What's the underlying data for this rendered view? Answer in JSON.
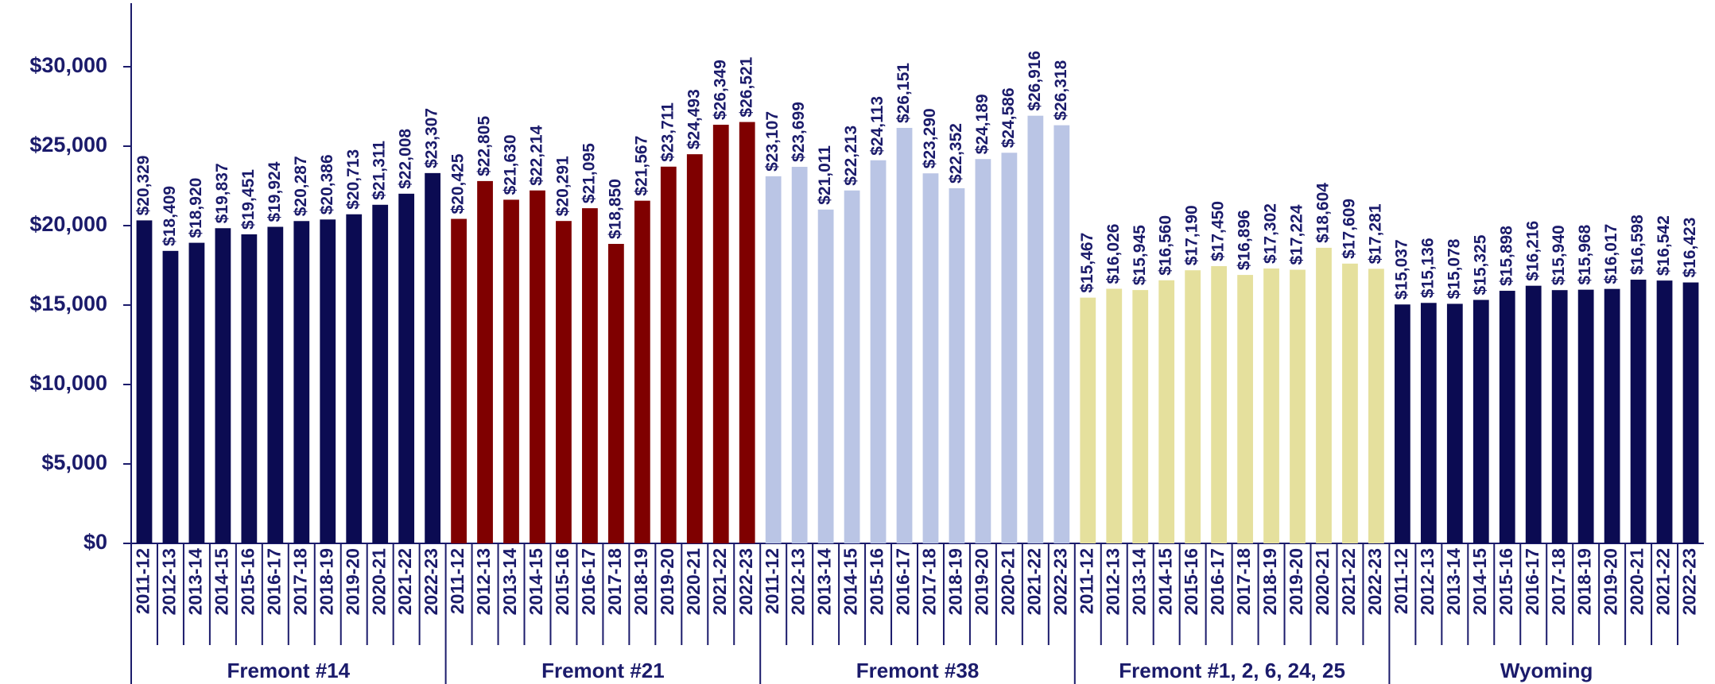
{
  "chart_data": {
    "type": "bar",
    "categories": [
      "2011-12",
      "2012-13",
      "2013-14",
      "2014-15",
      "2015-16",
      "2016-17",
      "2017-18",
      "2018-19",
      "2019-20",
      "2020-21",
      "2021-22",
      "2022-23"
    ],
    "series": [
      {
        "name": "Fremont #14",
        "color": "#0b0b52",
        "values": [
          20329,
          18409,
          18920,
          19837,
          19451,
          19924,
          20287,
          20386,
          20713,
          21311,
          22008,
          23307
        ],
        "value_labels": [
          "$20,329",
          "$18,409",
          "$18,920",
          "$19,837",
          "$19,451",
          "$19,924",
          "$20,287",
          "$20,386",
          "$20,713",
          "$21,311",
          "$22,008",
          "$23,307"
        ]
      },
      {
        "name": "Fremont #21",
        "color": "#7f0000",
        "values": [
          20425,
          22805,
          21630,
          22214,
          20291,
          21095,
          18850,
          21567,
          23711,
          24493,
          26349,
          26521
        ],
        "value_labels": [
          "$20,425",
          "$22,805",
          "$21,630",
          "$22,214",
          "$20,291",
          "$21,095",
          "$18,850",
          "$21,567",
          "$23,711",
          "$24,493",
          "$26,349",
          "$26,521"
        ]
      },
      {
        "name": "Fremont #38",
        "color": "#bac5e5",
        "values": [
          23107,
          23699,
          21011,
          22213,
          24113,
          26151,
          23290,
          22352,
          24189,
          24586,
          26916,
          26318
        ],
        "value_labels": [
          "$23,107",
          "$23,699",
          "$21,011",
          "$22,213",
          "$24,113",
          "$26,151",
          "$23,290",
          "$22,352",
          "$24,189",
          "$24,586",
          "$26,916",
          "$26,318"
        ]
      },
      {
        "name": "Fremont #1, 2, 6, 24, 25",
        "color": "#e5e09d",
        "values": [
          15467,
          16026,
          15945,
          16560,
          17190,
          17450,
          16896,
          17302,
          17224,
          18604,
          17609,
          17281
        ],
        "value_labels": [
          "$15,467",
          "$16,026",
          "$15,945",
          "$16,560",
          "$17,190",
          "$17,450",
          "$16,896",
          "$17,302",
          "$17,224",
          "$18,604",
          "$17,609",
          "$17,281"
        ]
      },
      {
        "name": "Wyoming",
        "color": "#0b0b52",
        "values": [
          15037,
          15136,
          15078,
          15325,
          15898,
          16216,
          15940,
          15968,
          16017,
          16598,
          16542,
          16423
        ],
        "value_labels": [
          "$15,037",
          "$15,136",
          "$15,078",
          "$15,325",
          "$15,898",
          "$16,216",
          "$15,940",
          "$15,968",
          "$16,017",
          "$16,598",
          "$16,542",
          "$16,423"
        ]
      }
    ],
    "ylim": [
      0,
      34000
    ],
    "yticks": [
      {
        "value": 0,
        "label": "$0"
      },
      {
        "value": 5000,
        "label": "$5,000"
      },
      {
        "value": 10000,
        "label": "$10,000"
      },
      {
        "value": 15000,
        "label": "$15,000"
      },
      {
        "value": 20000,
        "label": "$20,000"
      },
      {
        "value": 25000,
        "label": "$25,000"
      },
      {
        "value": 30000,
        "label": "$30,000"
      }
    ]
  }
}
